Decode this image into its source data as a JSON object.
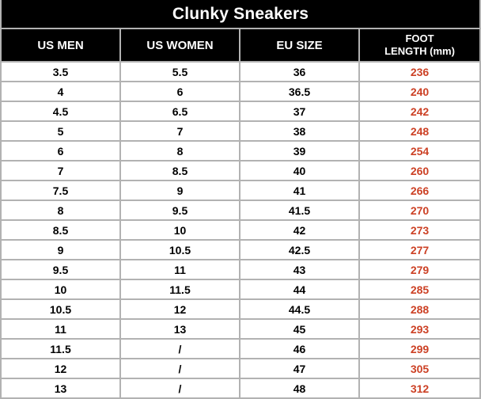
{
  "chart_data": {
    "type": "table",
    "title": "Clunky Sneakers",
    "columns": [
      "US MEN",
      "US WOMEN",
      "EU SIZE",
      "FOOT LENGTH (mm)"
    ],
    "rows": [
      [
        "3.5",
        "5.5",
        "36",
        "236"
      ],
      [
        "4",
        "6",
        "36.5",
        "240"
      ],
      [
        "4.5",
        "6.5",
        "37",
        "242"
      ],
      [
        "5",
        "7",
        "38",
        "248"
      ],
      [
        "6",
        "8",
        "39",
        "254"
      ],
      [
        "7",
        "8.5",
        "40",
        "260"
      ],
      [
        "7.5",
        "9",
        "41",
        "266"
      ],
      [
        "8",
        "9.5",
        "41.5",
        "270"
      ],
      [
        "8.5",
        "10",
        "42",
        "273"
      ],
      [
        "9",
        "10.5",
        "42.5",
        "277"
      ],
      [
        "9.5",
        "11",
        "43",
        "279"
      ],
      [
        "10",
        "11.5",
        "44",
        "285"
      ],
      [
        "10.5",
        "12",
        "44.5",
        "288"
      ],
      [
        "11",
        "13",
        "45",
        "293"
      ],
      [
        "11.5",
        "/",
        "46",
        "299"
      ],
      [
        "12",
        "/",
        "47",
        "305"
      ],
      [
        "13",
        "/",
        "48",
        "312"
      ]
    ]
  },
  "header_display": {
    "foot_length_line1": "FOOT",
    "foot_length_line2": "LENGTH (mm)"
  },
  "colors": {
    "header_bg": "#000000",
    "header_text": "#ffffff",
    "body_text": "#000000",
    "foot_length_text": "#cc4125",
    "grid_border": "#b2b2b2",
    "row_bg": "#ffffff"
  }
}
